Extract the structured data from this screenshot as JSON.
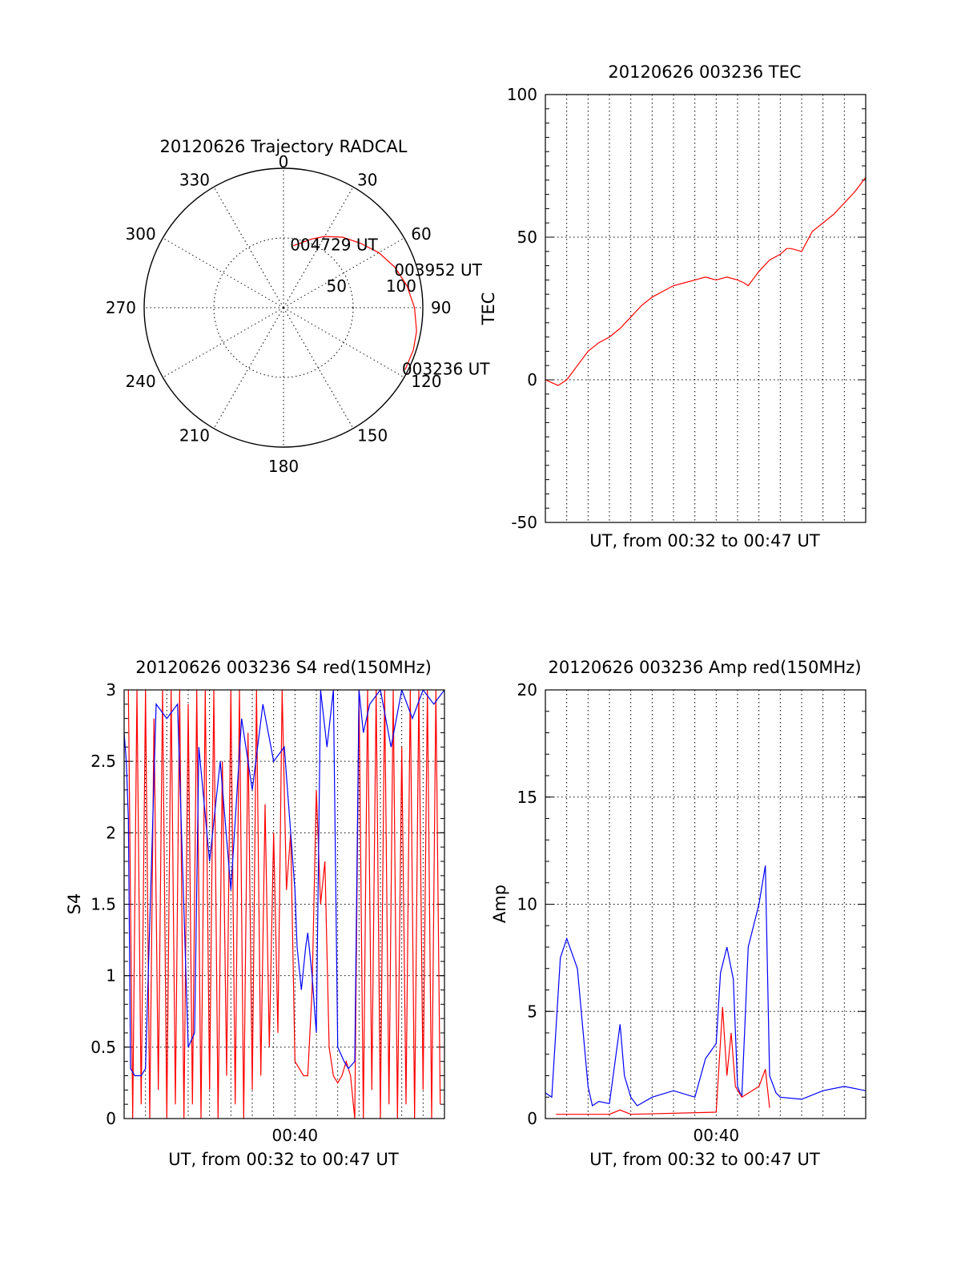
{
  "chart_data": [
    {
      "type": "polar",
      "title": "20120626 Trajectory RADCAL",
      "angle_labels": [
        "0",
        "30",
        "60",
        "90",
        "120",
        "150",
        "180",
        "210",
        "240",
        "270",
        "300",
        "330"
      ],
      "radius_labels": [
        "50",
        "100"
      ],
      "rlim": [
        0,
        100
      ],
      "grid": true,
      "series": [
        {
          "color": "#ff0000",
          "points": [
            {
              "az": 9,
              "zen": 45
            },
            {
              "az": 15,
              "zen": 48
            },
            {
              "az": 22,
              "zen": 53
            },
            {
              "az": 30,
              "zen": 59
            },
            {
              "az": 40,
              "zen": 66
            },
            {
              "az": 50,
              "zen": 72
            },
            {
              "az": 60,
              "zen": 79
            },
            {
              "az": 70,
              "zen": 85
            },
            {
              "az": 80,
              "zen": 90
            },
            {
              "az": 90,
              "zen": 94
            },
            {
              "az": 100,
              "zen": 97
            },
            {
              "az": 108,
              "zen": 98
            },
            {
              "az": 117,
              "zen": 98
            }
          ]
        }
      ],
      "annotations": [
        {
          "text": "004729 UT",
          "az": 9,
          "zen": 45
        },
        {
          "text": "003952 UT",
          "az": 72,
          "zen": 86
        },
        {
          "text": "003236 UT",
          "az": 117,
          "zen": 98
        }
      ]
    },
    {
      "type": "line",
      "title": "20120626 003236 TEC",
      "xlabel": "UT, from 00:32 to 00:47 UT",
      "ylabel": "TEC",
      "xlim": [
        0,
        15
      ],
      "ylim": [
        -50,
        100
      ],
      "yticks": [
        -50,
        0,
        50,
        100
      ],
      "grid": true,
      "series": [
        {
          "color": "#ff0000",
          "x": [
            0,
            0.3,
            0.6,
            1.0,
            1.5,
            2.0,
            2.5,
            3.0,
            3.5,
            4.0,
            4.5,
            5.0,
            5.5,
            6.0,
            6.5,
            7.0,
            7.5,
            8.0,
            8.5,
            9.0,
            9.3,
            9.5,
            9.8,
            10.0,
            10.5,
            11.0,
            11.3,
            11.5,
            12.0,
            12.5,
            13.0,
            13.5,
            14.0,
            14.5,
            15.0
          ],
          "y": [
            0,
            -1,
            -2,
            0,
            5,
            10,
            13,
            15,
            18,
            22,
            26,
            29,
            31,
            33,
            34,
            35,
            36,
            35,
            36,
            35,
            34,
            33,
            36,
            38,
            42,
            44,
            46,
            46,
            45,
            52,
            55,
            58,
            62,
            66,
            71
          ]
        }
      ]
    },
    {
      "type": "line",
      "title": "20120626 003236 S4 red(150MHz)",
      "xlabel": "UT, from 00:32 to 00:47 UT",
      "ylabel": "S4",
      "xtick_labels": [
        "00:40"
      ],
      "xlim": [
        0,
        15
      ],
      "ylim": [
        0,
        3
      ],
      "yticks": [
        0,
        0.5,
        1,
        1.5,
        2,
        2.5,
        3
      ],
      "grid": true,
      "series": [
        {
          "color": "#ff0000",
          "x": [
            0.2,
            0.4,
            0.6,
            0.8,
            1.0,
            1.2,
            1.4,
            1.6,
            1.8,
            2.0,
            2.2,
            2.4,
            2.6,
            2.8,
            3.0,
            3.2,
            3.4,
            3.6,
            3.8,
            4.0,
            4.2,
            4.4,
            4.6,
            4.8,
            5.0,
            5.2,
            5.4,
            5.6,
            5.8,
            6.0,
            6.2,
            6.4,
            6.6,
            6.8,
            7.0,
            7.2,
            7.4,
            7.6,
            7.8,
            8.0,
            8.2,
            8.4,
            8.6,
            8.8,
            9.0,
            9.2,
            9.4,
            9.6,
            9.8,
            10.0,
            10.2,
            10.4,
            10.6,
            10.8,
            11.0,
            11.2,
            11.4,
            11.6,
            11.8,
            12.0,
            12.2,
            12.4,
            12.6,
            12.8,
            13.0,
            13.2,
            13.4,
            13.6,
            13.8,
            14.0,
            14.2,
            14.4,
            14.6,
            14.8
          ],
          "y": [
            3,
            0,
            3,
            0.1,
            3,
            0,
            2.8,
            0.2,
            3,
            0,
            3,
            0.1,
            3,
            0,
            2.9,
            0.1,
            3,
            0,
            3,
            0.2,
            3,
            0,
            2.5,
            0.3,
            3,
            0.1,
            3,
            0,
            2.7,
            0.2,
            3,
            0.3,
            2.2,
            0.5,
            2.0,
            0.6,
            3,
            1.6,
            2.0,
            0.4,
            0.35,
            0.3,
            0.3,
            0.9,
            2.3,
            1.5,
            1.8,
            0.5,
            0.3,
            0.25,
            0.3,
            0.4,
            0.3,
            0,
            3,
            0,
            3,
            0.2,
            3,
            0,
            3,
            0.1,
            3,
            0,
            2.6,
            0.1,
            3,
            0,
            3,
            0.2,
            3,
            0,
            3,
            0.1
          ]
        },
        {
          "color": "#0000ff",
          "x": [
            0.0,
            0.1,
            0.2,
            0.3,
            0.5,
            0.8,
            1.0,
            1.5,
            2.0,
            2.5,
            3.0,
            3.3,
            3.5,
            4.0,
            4.5,
            5.0,
            5.5,
            6.0,
            6.5,
            7.0,
            7.5,
            8.0,
            8.1,
            8.3,
            8.5,
            8.6,
            8.8,
            9.0,
            9.2,
            9.5,
            9.8,
            10.0,
            10.3,
            10.5,
            10.8,
            11.0,
            11.2,
            11.5,
            12.0,
            12.5,
            13.0,
            13.5,
            14.0,
            14.5,
            15.0
          ],
          "y": [
            2.7,
            2.5,
            2.1,
            0.35,
            0.3,
            0.3,
            0.35,
            2.9,
            2.8,
            2.9,
            0.5,
            0.6,
            2.6,
            1.8,
            2.5,
            1.6,
            2.8,
            2.3,
            2.9,
            2.5,
            2.6,
            1.6,
            1.2,
            0.9,
            1.2,
            1.3,
            1.0,
            0.6,
            3,
            2.6,
            3,
            0.5,
            0.4,
            0.35,
            0.4,
            3,
            2.7,
            2.9,
            3,
            2.6,
            3,
            2.8,
            3,
            2.9,
            3
          ]
        }
      ]
    },
    {
      "type": "line",
      "title": "20120626 003236 Amp red(150MHz)",
      "xlabel": "UT, from 00:32 to 00:47 UT",
      "ylabel": "Amp",
      "xtick_labels": [
        "00:40"
      ],
      "xlim": [
        0,
        15
      ],
      "ylim": [
        0,
        20
      ],
      "yticks": [
        0,
        5,
        10,
        15,
        20
      ],
      "grid": true,
      "series": [
        {
          "color": "#0000ff",
          "x": [
            0.0,
            0.3,
            0.7,
            1.0,
            1.5,
            2.0,
            2.2,
            2.5,
            3.0,
            3.5,
            3.7,
            4.0,
            4.3,
            5.0,
            6.0,
            7.0,
            7.5,
            8.0,
            8.2,
            8.5,
            8.8,
            9.0,
            9.2,
            9.5,
            10.0,
            10.3,
            10.5,
            10.8,
            11.0,
            12.0,
            13.0,
            14.0,
            15.0
          ],
          "y": [
            1.2,
            1.0,
            7.5,
            8.4,
            7.0,
            1.5,
            0.6,
            0.8,
            0.7,
            4.4,
            2.0,
            1.0,
            0.6,
            1.0,
            1.3,
            1.0,
            2.8,
            3.5,
            6.8,
            8.0,
            6.5,
            1.5,
            1.0,
            8.0,
            10.0,
            11.8,
            2.0,
            1.2,
            1.0,
            0.9,
            1.3,
            1.5,
            1.3
          ]
        },
        {
          "color": "#ff0000",
          "x": [
            0.5,
            1.0,
            1.5,
            2.0,
            3.0,
            3.5,
            4.0,
            8.0,
            8.3,
            8.5,
            8.7,
            8.9,
            9.2,
            10.0,
            10.3,
            10.5
          ],
          "y": [
            0.2,
            0.2,
            0.2,
            0.2,
            0.2,
            0.4,
            0.2,
            0.3,
            5.2,
            2.0,
            4.0,
            1.5,
            1.0,
            1.5,
            2.3,
            0.5
          ]
        }
      ]
    }
  ]
}
